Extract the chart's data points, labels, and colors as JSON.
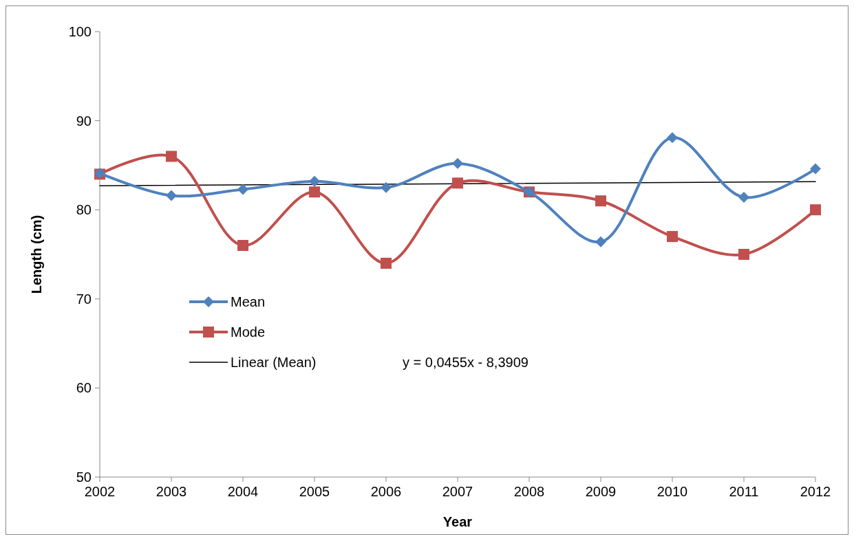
{
  "chart_data": {
    "type": "line",
    "xlabel": "Year",
    "ylabel": "Length (cm)",
    "x": [
      2002,
      2003,
      2004,
      2005,
      2006,
      2007,
      2008,
      2009,
      2010,
      2011,
      2012
    ],
    "xlim": [
      2002,
      2012
    ],
    "xticks": [
      2002,
      2003,
      2004,
      2005,
      2006,
      2007,
      2008,
      2009,
      2010,
      2011,
      2012
    ],
    "ylim": [
      50,
      100
    ],
    "yticks": [
      50,
      60,
      70,
      80,
      90,
      100
    ],
    "grid": false,
    "legend": "bottom left",
    "series": [
      {
        "name": "Mean",
        "color": "#4f81bd",
        "marker": "diamond",
        "values": [
          84.1,
          81.6,
          82.3,
          83.2,
          82.5,
          85.2,
          82,
          76.4,
          88.1,
          81.4,
          84.6
        ]
      },
      {
        "name": "Mode",
        "color": "#c0504d",
        "marker": "square",
        "values": [
          84,
          86,
          76,
          82,
          74,
          83,
          82,
          81,
          77,
          75,
          80
        ]
      },
      {
        "name": "Linear (Mean)",
        "color": "#000000",
        "marker": "none",
        "x": [
          2002,
          2012
        ],
        "values": [
          82.7,
          83.16
        ]
      }
    ],
    "annotations": [
      "y = 0,0455x - 8,3909"
    ]
  }
}
